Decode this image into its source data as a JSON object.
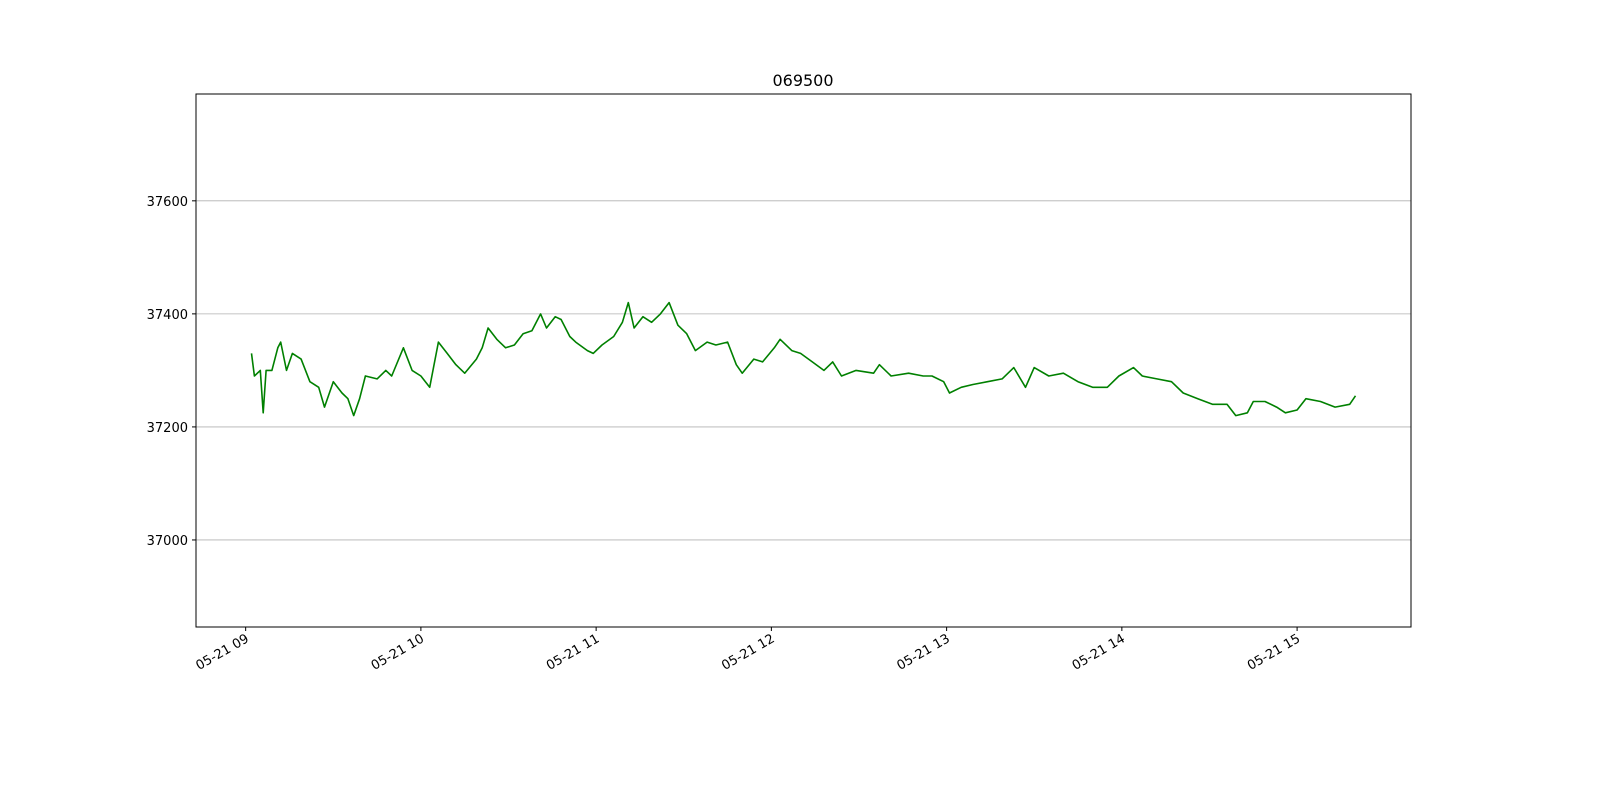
{
  "chart_data": {
    "type": "line",
    "title": "069500",
    "color": "#008000",
    "grid": "y",
    "xlim": [
      "05-21 08:43",
      "05-21 15:39"
    ],
    "xticks": [
      {
        "value": "05-21 09:00",
        "label": "05-21 09"
      },
      {
        "value": "05-21 10:00",
        "label": "05-21 10"
      },
      {
        "value": "05-21 11:00",
        "label": "05-21 11"
      },
      {
        "value": "05-21 12:00",
        "label": "05-21 12"
      },
      {
        "value": "05-21 13:00",
        "label": "05-21 13"
      },
      {
        "value": "05-21 14:00",
        "label": "05-21 14"
      },
      {
        "value": "05-21 15:00",
        "label": "05-21 15"
      }
    ],
    "ylim": [
      36846,
      37789
    ],
    "yticks": [
      37000,
      37200,
      37400,
      37600
    ],
    "x": [
      "05-21 09:02",
      "05-21 09:03",
      "05-21 09:05",
      "05-21 09:06",
      "05-21 09:07",
      "05-21 09:09",
      "05-21 09:11",
      "05-21 09:12",
      "05-21 09:14",
      "05-21 09:16",
      "05-21 09:19",
      "05-21 09:22",
      "05-21 09:25",
      "05-21 09:27",
      "05-21 09:30",
      "05-21 09:33",
      "05-21 09:35",
      "05-21 09:37",
      "05-21 09:39",
      "05-21 09:41",
      "05-21 09:45",
      "05-21 09:48",
      "05-21 09:50",
      "05-21 09:54",
      "05-21 09:57",
      "05-21 10:00",
      "05-21 10:03",
      "05-21 10:06",
      "05-21 10:09",
      "05-21 10:12",
      "05-21 10:15",
      "05-21 10:19",
      "05-21 10:21",
      "05-21 10:23",
      "05-21 10:26",
      "05-21 10:29",
      "05-21 10:32",
      "05-21 10:35",
      "05-21 10:38",
      "05-21 10:41",
      "05-21 10:43",
      "05-21 10:46",
      "05-21 10:48",
      "05-21 10:51",
      "05-21 10:53",
      "05-21 10:57",
      "05-21 10:59",
      "05-21 11:02",
      "05-21 11:06",
      "05-21 11:09",
      "05-21 11:11",
      "05-21 11:13",
      "05-21 11:16",
      "05-21 11:19",
      "05-21 11:22",
      "05-21 11:25",
      "05-21 11:28",
      "05-21 11:31",
      "05-21 11:34",
      "05-21 11:38",
      "05-21 11:41",
      "05-21 11:45",
      "05-21 11:48",
      "05-21 11:50",
      "05-21 11:54",
      "05-21 11:57",
      "05-21 12:01",
      "05-21 12:03",
      "05-21 12:07",
      "05-21 12:10",
      "05-21 12:14",
      "05-21 12:18",
      "05-21 12:21",
      "05-21 12:24",
      "05-21 12:29",
      "05-21 12:35",
      "05-21 12:37",
      "05-21 12:41",
      "05-21 12:47",
      "05-21 12:52",
      "05-21 12:55",
      "05-21 12:59",
      "05-21 13:01",
      "05-21 13:05",
      "05-21 13:09",
      "05-21 13:14",
      "05-21 13:19",
      "05-21 13:23",
      "05-21 13:27",
      "05-21 13:30",
      "05-21 13:35",
      "05-21 13:40",
      "05-21 13:45",
      "05-21 13:50",
      "05-21 13:55",
      "05-21 13:59",
      "05-21 14:04",
      "05-21 14:07",
      "05-21 14:12",
      "05-21 14:17",
      "05-21 14:21",
      "05-21 14:26",
      "05-21 14:31",
      "05-21 14:36",
      "05-21 14:39",
      "05-21 14:43",
      "05-21 14:45",
      "05-21 14:49",
      "05-21 14:53",
      "05-21 14:56",
      "05-21 15:00",
      "05-21 15:03",
      "05-21 15:08",
      "05-21 15:13",
      "05-21 15:18",
      "05-21 15:20"
    ],
    "values": [
      37330,
      37290,
      37300,
      37225,
      37300,
      37300,
      37340,
      37350,
      37300,
      37330,
      37320,
      37280,
      37270,
      37235,
      37280,
      37260,
      37250,
      37220,
      37250,
      37290,
      37285,
      37300,
      37290,
      37340,
      37300,
      37290,
      37270,
      37350,
      37330,
      37310,
      37295,
      37320,
      37340,
      37375,
      37355,
      37340,
      37345,
      37365,
      37370,
      37400,
      37375,
      37395,
      37390,
      37360,
      37350,
      37335,
      37330,
      37345,
      37360,
      37385,
      37420,
      37375,
      37395,
      37385,
      37400,
      37420,
      37380,
      37365,
      37335,
      37350,
      37345,
      37350,
      37310,
      37295,
      37320,
      37315,
      37340,
      37355,
      37335,
      37330,
      37315,
      37300,
      37315,
      37290,
      37300,
      37295,
      37310,
      37290,
      37295,
      37290,
      37290,
      37280,
      37260,
      37270,
      37275,
      37280,
      37285,
      37305,
      37270,
      37305,
      37290,
      37295,
      37280,
      37270,
      37270,
      37290,
      37305,
      37290,
      37285,
      37280,
      37260,
      37250,
      37240,
      37240,
      37220,
      37225,
      37245,
      37245,
      37235,
      37225,
      37230,
      37250,
      37245,
      37235,
      37240,
      37255
    ]
  }
}
